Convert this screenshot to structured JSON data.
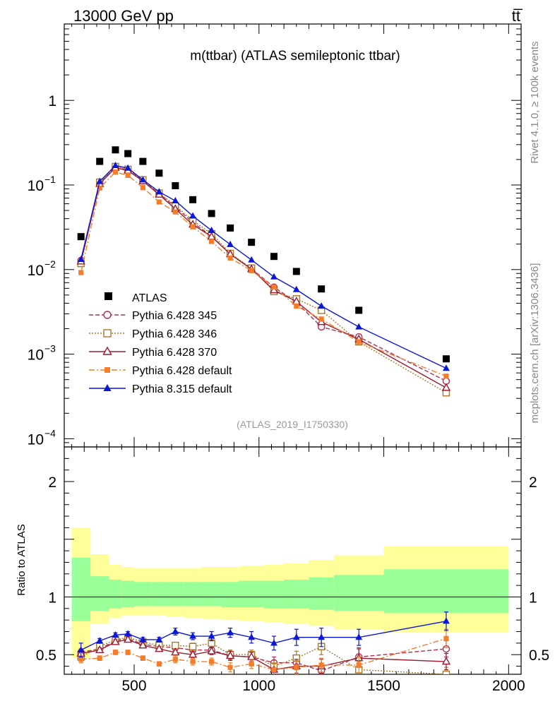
{
  "header": {
    "left_label": "13000 GeV pp",
    "right_label": "tt̅"
  },
  "side_labels": {
    "rivet": "Rivet 4.1.0, ≥ 100k events",
    "mcplots": "mcplots.cern.ch [arXiv:1306.3436]"
  },
  "chart_data": {
    "type": "line",
    "title": "m(ttbar) (ATLAS semileptonic ttbar)",
    "analysis_id": "(ATLAS_2019_I1750330)",
    "xlabel": "",
    "ylabel": "",
    "xlim": [
      220,
      2050
    ],
    "ylim": [
      8e-05,
      8
    ],
    "yscale": "log",
    "ratio_ylabel": "Ratio to ATLAS",
    "ratio_ylim": [
      0.33,
      2.3
    ],
    "x_ticks": [
      {
        "value": 500,
        "label": "500"
      },
      {
        "value": 1000,
        "label": "1000"
      },
      {
        "value": 1500,
        "label": "1500"
      },
      {
        "value": 2000,
        "label": "2000"
      }
    ],
    "y_ticks": [
      {
        "value": 1,
        "base": "1",
        "exp": ""
      },
      {
        "value": 0.1,
        "base": "10",
        "exp": "−1"
      },
      {
        "value": 0.01,
        "base": "10",
        "exp": "−2"
      },
      {
        "value": 0.001,
        "base": "10",
        "exp": "−3"
      },
      {
        "value": 0.0001,
        "base": "10",
        "exp": "−4"
      }
    ],
    "ratio_ticks": [
      {
        "value": 0.5,
        "label": "0.5"
      },
      {
        "value": 1,
        "label": "1"
      },
      {
        "value": 2,
        "label": "2"
      }
    ],
    "bins": [
      {
        "lo": 250,
        "hi": 325
      },
      {
        "lo": 325,
        "hi": 400
      },
      {
        "lo": 400,
        "hi": 450
      },
      {
        "lo": 450,
        "hi": 500
      },
      {
        "lo": 500,
        "hi": 570
      },
      {
        "lo": 570,
        "hi": 630
      },
      {
        "lo": 630,
        "hi": 700
      },
      {
        "lo": 700,
        "hi": 770
      },
      {
        "lo": 770,
        "hi": 850
      },
      {
        "lo": 850,
        "hi": 920
      },
      {
        "lo": 920,
        "hi": 1020
      },
      {
        "lo": 1020,
        "hi": 1100
      },
      {
        "lo": 1100,
        "hi": 1200
      },
      {
        "lo": 1200,
        "hi": 1300
      },
      {
        "lo": 1300,
        "hi": 1500
      },
      {
        "lo": 1500,
        "hi": 2000
      }
    ],
    "x": [
      287,
      362,
      425,
      475,
      535,
      600,
      665,
      735,
      810,
      885,
      970,
      1060,
      1150,
      1250,
      1400,
      1750
    ],
    "data_name": "ATLAS",
    "data_values": [
      0.0245,
      0.19,
      0.26,
      0.235,
      0.19,
      0.138,
      0.098,
      0.067,
      0.046,
      0.031,
      0.021,
      0.0143,
      0.0095,
      0.0059,
      0.0033,
      0.00088
    ],
    "band_inner": [
      [
        0.79,
        1.34
      ],
      [
        0.88,
        1.18
      ],
      [
        0.9,
        1.15
      ],
      [
        0.91,
        1.14
      ],
      [
        0.92,
        1.13
      ],
      [
        0.92,
        1.13
      ],
      [
        0.92,
        1.13
      ],
      [
        0.92,
        1.13
      ],
      [
        0.92,
        1.13
      ],
      [
        0.91,
        1.13
      ],
      [
        0.91,
        1.14
      ],
      [
        0.9,
        1.14
      ],
      [
        0.9,
        1.15
      ],
      [
        0.89,
        1.17
      ],
      [
        0.88,
        1.19
      ],
      [
        0.86,
        1.24
      ]
    ],
    "band_outer": [
      [
        0.47,
        1.6
      ],
      [
        0.77,
        1.37
      ],
      [
        0.82,
        1.28
      ],
      [
        0.84,
        1.26
      ],
      [
        0.84,
        1.25
      ],
      [
        0.84,
        1.25
      ],
      [
        0.83,
        1.25
      ],
      [
        0.82,
        1.25
      ],
      [
        0.81,
        1.26
      ],
      [
        0.8,
        1.26
      ],
      [
        0.79,
        1.27
      ],
      [
        0.78,
        1.28
      ],
      [
        0.77,
        1.29
      ],
      [
        0.75,
        1.32
      ],
      [
        0.72,
        1.36
      ],
      [
        0.69,
        1.44
      ]
    ],
    "series": [
      {
        "name": "Pythia 6.428 345",
        "color": "#b22d4f",
        "marker": "circle-open",
        "dash": "6,3",
        "values": [
          0.0128,
          0.105,
          0.162,
          0.15,
          0.112,
          0.079,
          0.055,
          0.036,
          0.0248,
          0.0152,
          0.0102,
          0.0062,
          0.0041,
          0.0021,
          0.0016,
          0.00048
        ],
        "ratio": [
          0.52,
          0.55,
          0.62,
          0.64,
          0.59,
          0.57,
          0.56,
          0.54,
          0.54,
          0.49,
          0.48,
          0.43,
          0.43,
          0.36,
          0.48,
          0.55
        ],
        "ratio_err": [
          0.03,
          0.02,
          0.02,
          0.02,
          0.02,
          0.02,
          0.02,
          0.03,
          0.03,
          0.04,
          0.04,
          0.05,
          0.06,
          0.06,
          0.08,
          0.07
        ]
      },
      {
        "name": "Pythia 6.428 346",
        "color": "#a8792a",
        "marker": "square-open",
        "dash": "2,2",
        "values": [
          0.0118,
          0.108,
          0.165,
          0.153,
          0.115,
          0.08,
          0.057,
          0.038,
          0.0265,
          0.0155,
          0.0104,
          0.0055,
          0.0045,
          0.0033,
          0.0014,
          0.00035
        ],
        "ratio": [
          0.48,
          0.57,
          0.63,
          0.65,
          0.61,
          0.58,
          0.58,
          0.57,
          0.6,
          0.5,
          0.5,
          0.4,
          0.47,
          0.57,
          0.37,
          0.33
        ],
        "ratio_err": [
          0.03,
          0.02,
          0.02,
          0.02,
          0.02,
          0.02,
          0.02,
          0.03,
          0.03,
          0.04,
          0.04,
          0.05,
          0.06,
          0.07,
          0.07,
          0.06
        ]
      },
      {
        "name": "Pythia 6.428 370",
        "color": "#9b1b30",
        "marker": "triangle-open",
        "dash": "",
        "values": [
          0.0125,
          0.103,
          0.16,
          0.148,
          0.111,
          0.077,
          0.052,
          0.034,
          0.0245,
          0.0152,
          0.0101,
          0.0057,
          0.0042,
          0.0024,
          0.0015,
          0.0004
        ],
        "ratio": [
          0.51,
          0.54,
          0.61,
          0.63,
          0.58,
          0.55,
          0.52,
          0.5,
          0.53,
          0.49,
          0.48,
          0.37,
          0.4,
          0.4,
          0.47,
          0.44
        ],
        "ratio_err": [
          0.03,
          0.02,
          0.02,
          0.02,
          0.02,
          0.02,
          0.02,
          0.03,
          0.03,
          0.04,
          0.04,
          0.05,
          0.06,
          0.06,
          0.08,
          0.07
        ]
      },
      {
        "name": "Pythia 6.428 default",
        "color": "#f47c2a",
        "marker": "square-filled",
        "dash": "8,3,2,3",
        "values": [
          0.0092,
          0.092,
          0.142,
          0.13,
          0.093,
          0.063,
          0.048,
          0.032,
          0.0215,
          0.0137,
          0.0097,
          0.0062,
          0.0037,
          0.0026,
          0.0014,
          0.00055
        ],
        "ratio": [
          0.46,
          0.47,
          0.52,
          0.52,
          0.47,
          0.42,
          0.46,
          0.44,
          0.44,
          0.39,
          0.42,
          0.37,
          0.39,
          0.41,
          0.41,
          0.64
        ],
        "ratio_err": [
          0.03,
          0.02,
          0.02,
          0.02,
          0.02,
          0.02,
          0.03,
          0.03,
          0.03,
          0.04,
          0.04,
          0.05,
          0.06,
          0.06,
          0.07,
          0.08
        ]
      },
      {
        "name": "Pythia 8.315 default",
        "color": "#0b17d6",
        "marker": "triangle-filled",
        "dash": "",
        "values": [
          0.0132,
          0.11,
          0.17,
          0.158,
          0.115,
          0.083,
          0.065,
          0.043,
          0.029,
          0.0198,
          0.013,
          0.0082,
          0.0058,
          0.0037,
          0.0021,
          0.00068
        ],
        "ratio": [
          0.54,
          0.62,
          0.67,
          0.68,
          0.63,
          0.63,
          0.7,
          0.66,
          0.66,
          0.69,
          0.65,
          0.6,
          0.65,
          0.65,
          0.65,
          0.79
        ],
        "ratio_err": [
          0.06,
          0.02,
          0.02,
          0.02,
          0.02,
          0.02,
          0.03,
          0.03,
          0.04,
          0.04,
          0.05,
          0.06,
          0.07,
          0.08,
          0.07,
          0.08
        ]
      }
    ]
  }
}
